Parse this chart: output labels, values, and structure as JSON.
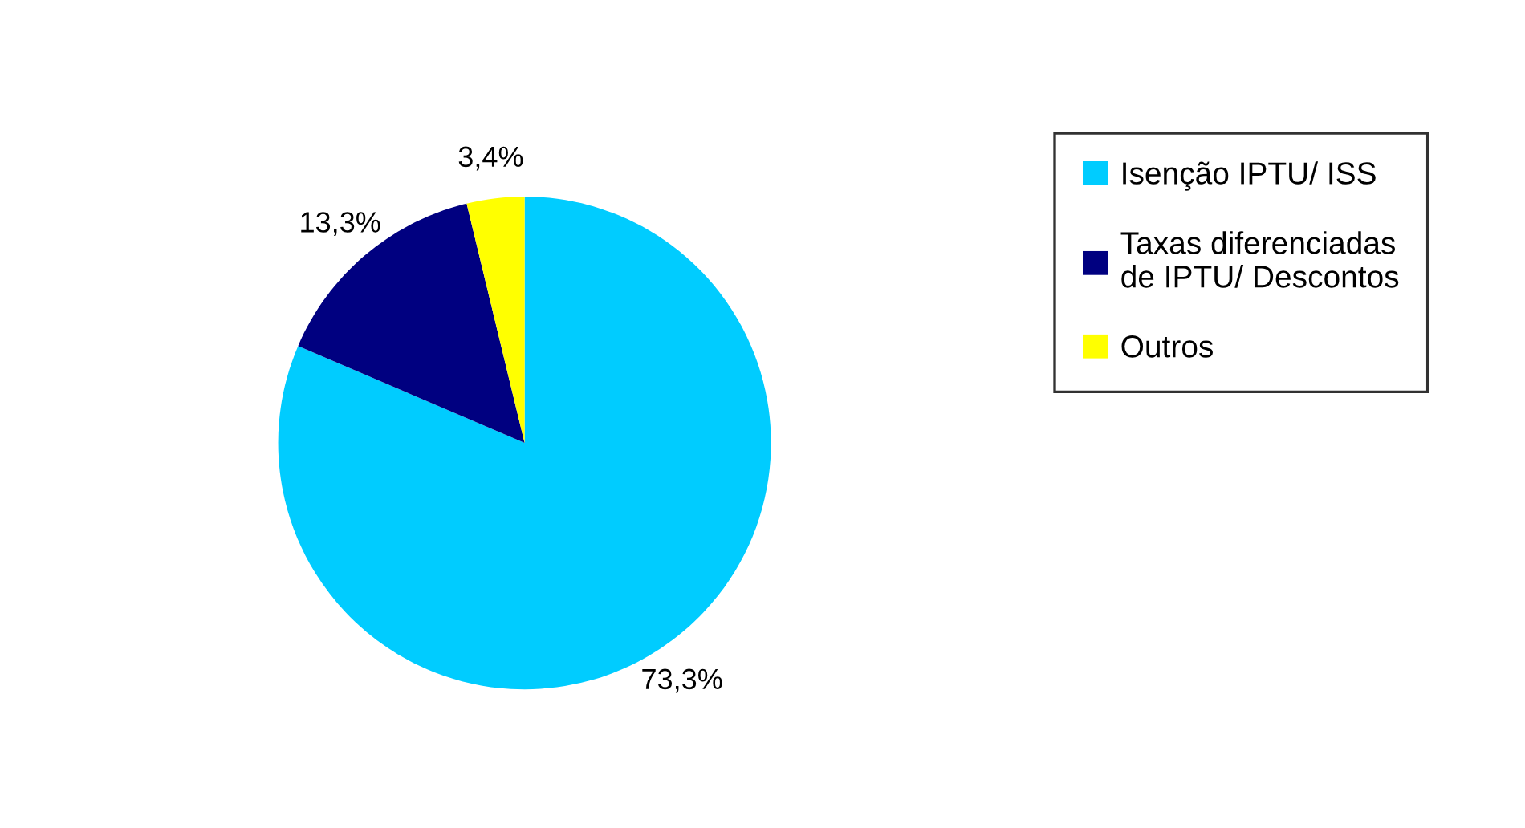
{
  "chart_data": {
    "type": "pie",
    "categories": [
      "Isenção IPTU/ ISS",
      "Taxas diferenciadas\nde IPTU/ Descontos",
      "Outros"
    ],
    "values": [
      73.3,
      13.3,
      3.4
    ],
    "value_labels": [
      "73,3%",
      "13,3%",
      "3,4%"
    ],
    "colors": [
      "#00ccff",
      "#000080",
      "#ffff00"
    ],
    "legend": "right"
  }
}
